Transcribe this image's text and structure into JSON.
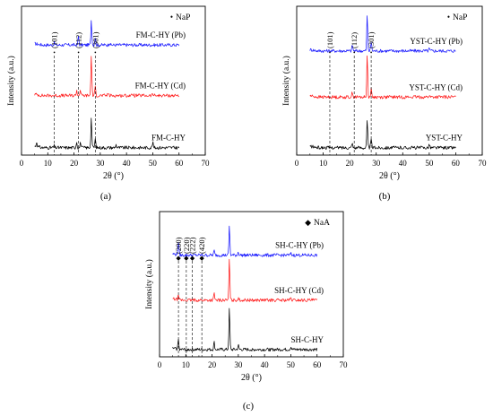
{
  "colors": {
    "blue": "#1a1aff",
    "red": "#ff1a1a",
    "black": "#000000",
    "frame": "#000000"
  },
  "chart_data": [
    {
      "type": "line",
      "panel_label": "(a)",
      "xlabel": "2θ (°)",
      "ylabel": "Intensity (a.u.)",
      "xlim": [
        0,
        70
      ],
      "ylim": [
        0,
        10
      ],
      "x_ticks": [
        0,
        10,
        20,
        30,
        40,
        50,
        60,
        70
      ],
      "legend_marker": "•",
      "legend_text": "NaP",
      "peak_markers": [
        {
          "x": 12.5,
          "label": "(101)"
        },
        {
          "x": 21.7,
          "label": "(112)"
        },
        {
          "x": 28.1,
          "label": "(301)"
        }
      ],
      "series": [
        {
          "name": "FM-C-HY (Pb)",
          "color": "#1a1aff",
          "base": 7.4,
          "peaks": [
            [
              12.5,
              0.15
            ],
            [
              21.7,
              0.6
            ],
            [
              26.6,
              1.7
            ],
            [
              28.1,
              0.5
            ],
            [
              33.5,
              0.18
            ]
          ]
        },
        {
          "name": "FM-C-HY (Cd)",
          "color": "#ff1a1a",
          "base": 4.0,
          "peaks": [
            [
              21.0,
              0.35
            ],
            [
              22.4,
              0.4
            ],
            [
              26.6,
              2.7
            ],
            [
              28.1,
              0.55
            ],
            [
              33.0,
              0.18
            ],
            [
              42.5,
              0.12
            ],
            [
              50.0,
              0.1
            ]
          ]
        },
        {
          "name": "FM-C-HY",
          "color": "#000000",
          "base": 0.5,
          "peaks": [
            [
              5.8,
              0.35
            ],
            [
              12.4,
              0.12
            ],
            [
              21.0,
              0.4
            ],
            [
              22.5,
              0.35
            ],
            [
              26.6,
              2.0
            ],
            [
              28.1,
              0.6
            ],
            [
              36.0,
              0.2
            ],
            [
              50.0,
              0.35
            ]
          ]
        }
      ]
    },
    {
      "type": "line",
      "panel_label": "(b)",
      "xlabel": "2θ (°)",
      "ylabel": "Intensity (a.u.)",
      "xlim": [
        0,
        70
      ],
      "ylim": [
        0,
        10
      ],
      "x_ticks": [
        0,
        10,
        20,
        30,
        40,
        50,
        60,
        70
      ],
      "legend_marker": "•",
      "legend_text": "NaP",
      "peak_markers": [
        {
          "x": 12.5,
          "label": "(101)"
        },
        {
          "x": 21.7,
          "label": "(112)"
        },
        {
          "x": 28.1,
          "label": "(301)"
        }
      ],
      "series": [
        {
          "name": "YST-C-HY (Pb)",
          "color": "#1a1aff",
          "base": 7.0,
          "peaks": [
            [
              21.0,
              0.4
            ],
            [
              26.6,
              2.4
            ],
            [
              28.1,
              0.6
            ],
            [
              50.0,
              0.15
            ]
          ]
        },
        {
          "name": "YST-C-HY (Cd)",
          "color": "#ff1a1a",
          "base": 3.9,
          "peaks": [
            [
              21.0,
              0.35
            ],
            [
              26.6,
              2.8
            ],
            [
              28.1,
              0.5
            ],
            [
              50.0,
              0.12
            ]
          ]
        },
        {
          "name": "YST-C-HY",
          "color": "#000000",
          "base": 0.5,
          "peaks": [
            [
              20.9,
              0.35
            ],
            [
              26.6,
              1.8
            ],
            [
              28.1,
              0.55
            ],
            [
              50.0,
              0.25
            ]
          ]
        }
      ]
    },
    {
      "type": "line",
      "panel_label": "(c)",
      "xlabel": "2θ (°)",
      "ylabel": "Intensity (a.u.)",
      "xlim": [
        0,
        70
      ],
      "ylim": [
        0,
        10
      ],
      "x_ticks": [
        0,
        10,
        20,
        30,
        40,
        50,
        60,
        70
      ],
      "legend_marker": "◆",
      "legend_text": "NaA",
      "peak_markers": [
        {
          "x": 7.2,
          "label": "(200)"
        },
        {
          "x": 10.2,
          "label": "(220)"
        },
        {
          "x": 12.5,
          "label": "(222)"
        },
        {
          "x": 16.1,
          "label": "(420)"
        }
      ],
      "series": [
        {
          "name": "SH-C-HY (Pb)",
          "color": "#1a1aff",
          "base": 7.0,
          "peaks": [
            [
              7.2,
              0.9
            ],
            [
              20.8,
              0.3
            ],
            [
              26.6,
              2.0
            ],
            [
              30.0,
              0.25
            ],
            [
              50.0,
              0.12
            ]
          ]
        },
        {
          "name": "SH-C-HY (Cd)",
          "color": "#ff1a1a",
          "base": 3.9,
          "peaks": [
            [
              7.2,
              0.35
            ],
            [
              20.8,
              0.45
            ],
            [
              26.6,
              2.8
            ],
            [
              30.0,
              0.2
            ],
            [
              50.0,
              0.15
            ]
          ]
        },
        {
          "name": "SH-C-HY",
          "color": "#000000",
          "base": 0.5,
          "peaks": [
            [
              7.2,
              0.7
            ],
            [
              20.8,
              0.5
            ],
            [
              26.6,
              2.8
            ],
            [
              30.0,
              0.3
            ],
            [
              50.0,
              0.2
            ]
          ]
        }
      ]
    }
  ]
}
